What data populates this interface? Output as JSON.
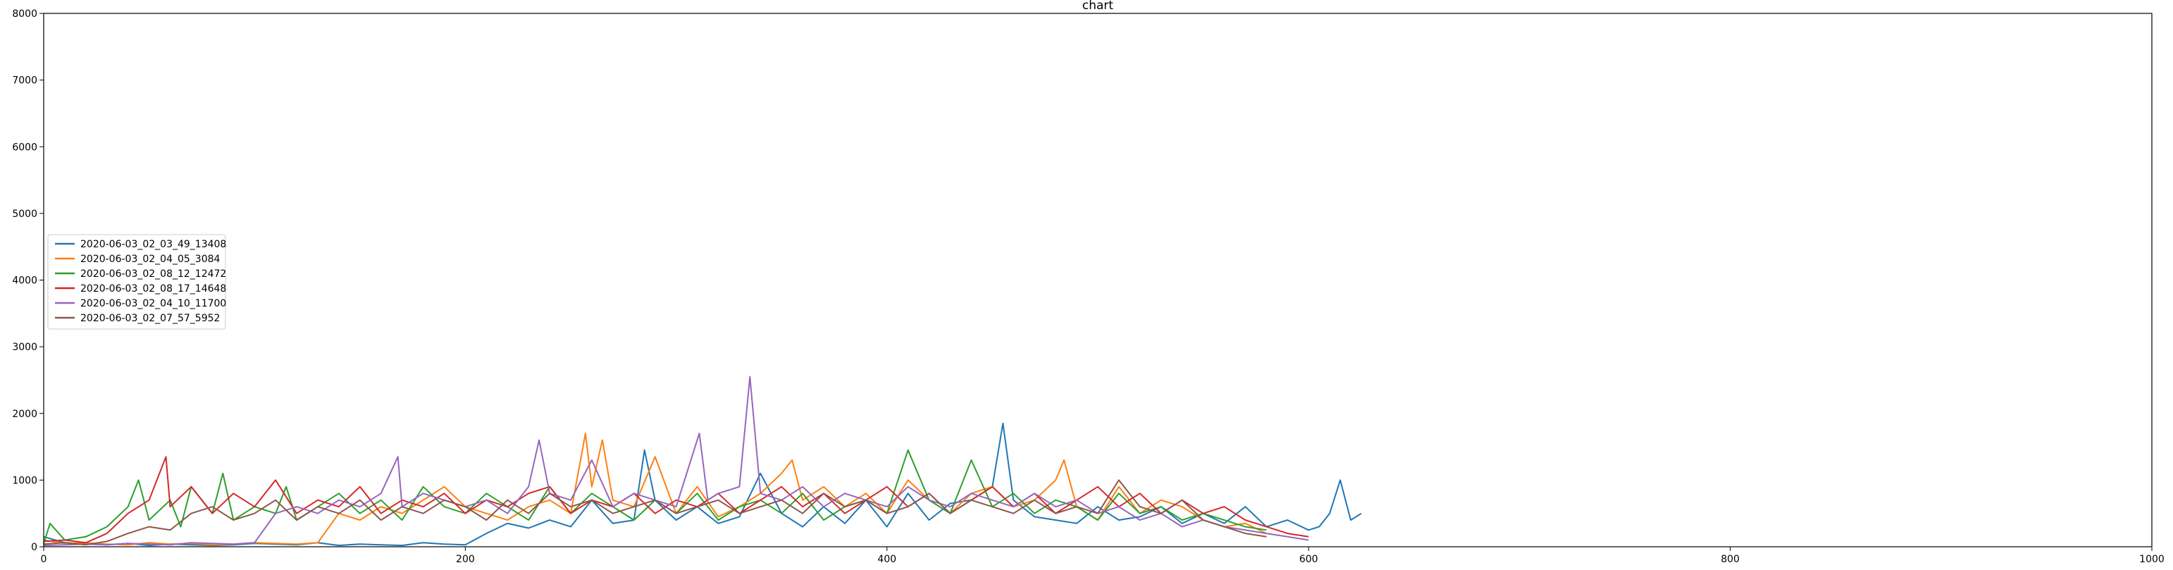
{
  "chart_data": {
    "type": "line",
    "title": "chart",
    "xlabel": "",
    "ylabel": "",
    "xlim": [
      0,
      1000
    ],
    "ylim": [
      0,
      8000
    ],
    "x_ticks": [
      0,
      200,
      400,
      600,
      800,
      1000
    ],
    "y_ticks": [
      0,
      1000,
      2000,
      3000,
      4000,
      5000,
      6000,
      7000,
      8000
    ],
    "grid": false,
    "legend_position": "center-left",
    "series": [
      {
        "name": "2020-06-03_02_03_49_13408",
        "color": "#1f77b4",
        "x": [
          0,
          10,
          20,
          30,
          40,
          50,
          60,
          70,
          80,
          90,
          100,
          110,
          120,
          130,
          140,
          150,
          160,
          170,
          180,
          190,
          200,
          210,
          220,
          230,
          240,
          250,
          260,
          270,
          280,
          285,
          290,
          300,
          310,
          320,
          330,
          340,
          350,
          360,
          370,
          380,
          390,
          400,
          410,
          420,
          430,
          440,
          450,
          455,
          460,
          470,
          480,
          490,
          500,
          510,
          520,
          530,
          540,
          550,
          560,
          570,
          580,
          590,
          600,
          605,
          610,
          615,
          620,
          625
        ],
        "y": [
          150,
          60,
          40,
          30,
          50,
          20,
          40,
          30,
          20,
          30,
          50,
          40,
          30,
          60,
          20,
          40,
          30,
          20,
          60,
          40,
          30,
          200,
          350,
          280,
          400,
          300,
          700,
          350,
          400,
          1450,
          700,
          400,
          600,
          350,
          450,
          1100,
          500,
          300,
          600,
          350,
          700,
          300,
          800,
          400,
          650,
          700,
          900,
          1850,
          700,
          450,
          400,
          350,
          600,
          400,
          450,
          600,
          350,
          500,
          350,
          600,
          300,
          400,
          250,
          300,
          500,
          1000,
          400,
          500
        ]
      },
      {
        "name": "2020-06-03_02_04_05_3084",
        "color": "#ff7f0e",
        "x": [
          0,
          10,
          20,
          30,
          40,
          50,
          60,
          70,
          80,
          90,
          100,
          110,
          120,
          130,
          140,
          150,
          160,
          170,
          180,
          190,
          200,
          210,
          220,
          230,
          240,
          250,
          257,
          260,
          265,
          270,
          280,
          290,
          300,
          310,
          320,
          330,
          340,
          350,
          355,
          360,
          370,
          380,
          390,
          400,
          410,
          420,
          430,
          440,
          450,
          460,
          470,
          480,
          484,
          490,
          500,
          510,
          520,
          530,
          540,
          550,
          560,
          570,
          580
        ],
        "y": [
          100,
          50,
          60,
          40,
          30,
          60,
          40,
          50,
          30,
          40,
          60,
          50,
          40,
          60,
          500,
          400,
          600,
          500,
          700,
          900,
          600,
          500,
          400,
          600,
          700,
          500,
          1700,
          900,
          1600,
          700,
          600,
          1350,
          500,
          900,
          450,
          600,
          800,
          1100,
          1300,
          700,
          900,
          600,
          800,
          500,
          1000,
          700,
          500,
          800,
          900,
          600,
          700,
          1000,
          1300,
          600,
          400,
          900,
          500,
          700,
          600,
          400,
          300,
          350,
          200
        ]
      },
      {
        "name": "2020-06-03_02_08_12_12472",
        "color": "#2ca02c",
        "x": [
          0,
          3,
          10,
          20,
          30,
          40,
          45,
          50,
          60,
          65,
          70,
          80,
          85,
          90,
          100,
          110,
          115,
          120,
          130,
          140,
          150,
          160,
          170,
          180,
          190,
          200,
          210,
          220,
          230,
          240,
          250,
          260,
          270,
          280,
          290,
          300,
          310,
          320,
          330,
          340,
          350,
          360,
          370,
          380,
          390,
          400,
          410,
          420,
          430,
          440,
          450,
          460,
          470,
          480,
          490,
          500,
          510,
          520,
          530,
          540,
          550,
          560,
          570,
          580
        ],
        "y": [
          50,
          350,
          100,
          150,
          300,
          600,
          1000,
          400,
          700,
          300,
          900,
          500,
          1100,
          400,
          600,
          500,
          900,
          400,
          600,
          800,
          500,
          700,
          400,
          900,
          600,
          500,
          800,
          600,
          400,
          900,
          500,
          800,
          600,
          400,
          700,
          500,
          800,
          400,
          600,
          700,
          500,
          800,
          400,
          600,
          700,
          500,
          1450,
          700,
          500,
          1300,
          600,
          800,
          500,
          700,
          600,
          400,
          800,
          500,
          600,
          400,
          500,
          400,
          300,
          250
        ]
      },
      {
        "name": "2020-06-03_02_08_17_14648",
        "color": "#d62728",
        "x": [
          0,
          10,
          20,
          30,
          40,
          50,
          58,
          60,
          70,
          80,
          90,
          100,
          110,
          120,
          130,
          140,
          150,
          160,
          170,
          180,
          190,
          200,
          210,
          220,
          230,
          240,
          250,
          260,
          270,
          280,
          290,
          300,
          310,
          320,
          330,
          340,
          350,
          360,
          370,
          380,
          390,
          400,
          410,
          420,
          430,
          440,
          450,
          460,
          470,
          480,
          490,
          500,
          510,
          520,
          530,
          540,
          550,
          560,
          570,
          580,
          590,
          600
        ],
        "y": [
          80,
          100,
          60,
          200,
          500,
          700,
          1350,
          600,
          900,
          500,
          800,
          600,
          1000,
          500,
          700,
          600,
          900,
          500,
          700,
          600,
          800,
          500,
          700,
          600,
          800,
          900,
          500,
          700,
          600,
          800,
          500,
          700,
          600,
          800,
          500,
          700,
          900,
          600,
          800,
          500,
          700,
          900,
          600,
          800,
          500,
          700,
          900,
          600,
          800,
          500,
          700,
          900,
          600,
          800,
          500,
          700,
          500,
          600,
          400,
          300,
          200,
          150
        ]
      },
      {
        "name": "2020-06-03_02_04_10_11700",
        "color": "#9467bd",
        "x": [
          0,
          10,
          20,
          30,
          40,
          50,
          60,
          70,
          80,
          90,
          100,
          110,
          120,
          130,
          140,
          150,
          160,
          168,
          170,
          180,
          190,
          200,
          210,
          220,
          230,
          235,
          240,
          250,
          260,
          270,
          280,
          290,
          300,
          311,
          315,
          320,
          330,
          335,
          340,
          350,
          360,
          370,
          380,
          390,
          400,
          410,
          420,
          430,
          440,
          450,
          460,
          470,
          480,
          490,
          500,
          510,
          520,
          530,
          540,
          550,
          560,
          570,
          580,
          590,
          600
        ],
        "y": [
          20,
          30,
          40,
          30,
          50,
          40,
          30,
          60,
          50,
          40,
          60,
          500,
          600,
          500,
          700,
          600,
          800,
          1350,
          600,
          800,
          700,
          600,
          700,
          500,
          900,
          1600,
          800,
          700,
          1300,
          600,
          800,
          700,
          600,
          1700,
          700,
          800,
          900,
          2550,
          800,
          700,
          900,
          600,
          800,
          700,
          600,
          900,
          700,
          600,
          800,
          700,
          600,
          800,
          600,
          700,
          500,
          600,
          400,
          500,
          300,
          400,
          300,
          250,
          200,
          150,
          100
        ]
      },
      {
        "name": "2020-06-03_02_07_57_5952",
        "color": "#8c564b",
        "x": [
          0,
          10,
          20,
          30,
          40,
          50,
          60,
          70,
          80,
          90,
          100,
          110,
          120,
          130,
          140,
          150,
          160,
          170,
          180,
          190,
          200,
          210,
          220,
          230,
          240,
          250,
          260,
          270,
          280,
          290,
          300,
          310,
          320,
          330,
          340,
          350,
          360,
          370,
          380,
          390,
          400,
          410,
          420,
          430,
          440,
          450,
          460,
          470,
          480,
          490,
          500,
          510,
          520,
          530,
          540,
          550,
          560,
          570,
          580
        ],
        "y": [
          40,
          60,
          30,
          80,
          200,
          300,
          250,
          500,
          600,
          400,
          500,
          700,
          400,
          600,
          500,
          700,
          400,
          600,
          500,
          700,
          600,
          400,
          700,
          500,
          800,
          600,
          700,
          500,
          600,
          700,
          500,
          600,
          700,
          500,
          600,
          700,
          500,
          800,
          600,
          700,
          500,
          600,
          800,
          500,
          700,
          600,
          500,
          700,
          500,
          600,
          500,
          1000,
          600,
          500,
          700,
          400,
          300,
          200,
          150
        ]
      }
    ]
  }
}
